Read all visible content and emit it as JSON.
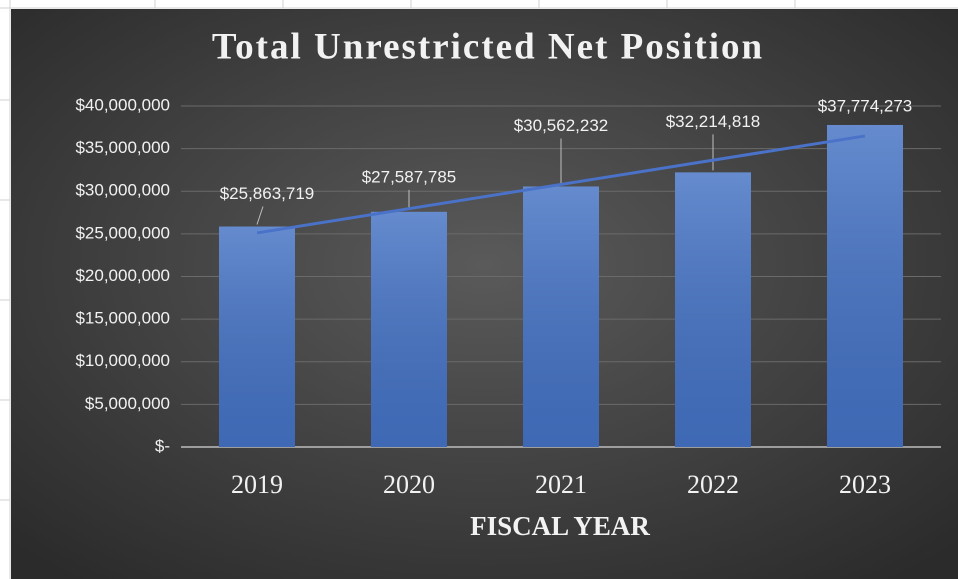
{
  "chart_data": {
    "type": "bar",
    "title": "Total Unrestricted Net Position",
    "x_label": "FISCAL YEAR",
    "categories": [
      "2019",
      "2020",
      "2021",
      "2022",
      "2023"
    ],
    "values": [
      25863719,
      27587785,
      30562232,
      32214818,
      37774273
    ],
    "value_labels": [
      "$25,863,719",
      "$27,587,785",
      "$30,562,232",
      "$32,214,818",
      "$37,774,273"
    ],
    "color": "#4472c4",
    "trendline": true,
    "trendline_color": "#4a72c8",
    "ylim": [
      0,
      40000000
    ],
    "yticks": [
      {
        "value": 0,
        "label": "$-"
      },
      {
        "value": 5000000,
        "label": "$5,000,000"
      },
      {
        "value": 10000000,
        "label": "$10,000,000"
      },
      {
        "value": 15000000,
        "label": "$15,000,000"
      },
      {
        "value": 20000000,
        "label": "$20,000,000"
      },
      {
        "value": 25000000,
        "label": "$25,000,000"
      },
      {
        "value": 30000000,
        "label": "$30,000,000"
      },
      {
        "value": 35000000,
        "label": "$35,000,000"
      },
      {
        "value": 40000000,
        "label": "$40,000,000"
      }
    ],
    "grid": true
  }
}
